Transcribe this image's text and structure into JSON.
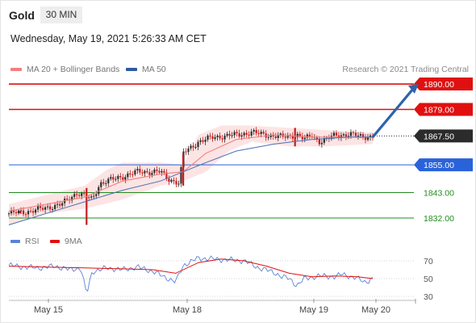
{
  "header": {
    "title": "Gold",
    "timeframe": "30 MIN",
    "datetime": "Wednesday, May 19, 2021 5:26:33 AM CET"
  },
  "legend": {
    "ma20": "MA 20 + Bollinger Bands",
    "ma50": "MA 50",
    "copyright": "Research © 2021 Trading Central"
  },
  "colors": {
    "resistance": "#e01010",
    "current": "#2b2b2b",
    "support_pivot": "#2a62d9",
    "support": "#1f8c1f",
    "ma20": "#f08080",
    "ma50": "#4a6fb5",
    "bollinger": "#fde4e4",
    "candle_up": "#2f2f2f",
    "candle_down": "#c41d1d",
    "rsi": "#5b82d6",
    "rsi_ma": "#e01010",
    "arrow": "#2f63a8"
  },
  "chart_data": [
    {
      "type": "candlestick",
      "title": "",
      "ylim": [
        1818,
        1897
      ],
      "x_ticks": [
        "May 15",
        "May 18",
        "May 19",
        "May 20"
      ],
      "levels": [
        {
          "label": "1890.00",
          "value": 1890.0,
          "kind": "resistance"
        },
        {
          "label": "1879.00",
          "value": 1879.0,
          "kind": "resistance"
        },
        {
          "label": "1867.50",
          "value": 1867.5,
          "kind": "current"
        },
        {
          "label": "1855.00",
          "value": 1855.0,
          "kind": "pivot"
        },
        {
          "label": "1843.00",
          "value": 1843.0,
          "kind": "support"
        },
        {
          "label": "1832.00",
          "value": 1832.0,
          "kind": "support"
        }
      ],
      "close_path": [
        [
          0,
          1834
        ],
        [
          6,
          1835
        ],
        [
          14,
          1838
        ],
        [
          18,
          1843
        ],
        [
          22,
          1840
        ],
        [
          24,
          1847
        ],
        [
          30,
          1850
        ],
        [
          34,
          1852
        ],
        [
          40,
          1852
        ],
        [
          42,
          1849
        ],
        [
          45,
          1847
        ],
        [
          46,
          1860
        ],
        [
          50,
          1865
        ],
        [
          54,
          1867
        ],
        [
          60,
          1868
        ],
        [
          64,
          1869
        ],
        [
          68,
          1868
        ],
        [
          72,
          1867
        ],
        [
          76,
          1868
        ],
        [
          78,
          1866
        ],
        [
          80,
          1868
        ],
        [
          82,
          1865
        ],
        [
          84,
          1866
        ],
        [
          86,
          1868
        ],
        [
          90,
          1868
        ],
        [
          96,
          1867
        ]
      ],
      "outlier_wicks": [
        {
          "x": 3,
          "low": 1834,
          "high": 1835
        },
        {
          "x": 20.5,
          "low": 1829,
          "high": 1845
        },
        {
          "x": 46,
          "low": 1846,
          "high": 1860
        },
        {
          "x": 75.5,
          "low": 1863,
          "high": 1871
        }
      ],
      "series": [
        {
          "name": "MA 20 + Bollinger Bands",
          "values": [
            [
              0,
              1835
            ],
            [
              10,
              1838
            ],
            [
              20,
              1841
            ],
            [
              30,
              1848
            ],
            [
              40,
              1851
            ],
            [
              46,
              1852
            ],
            [
              52,
              1860
            ],
            [
              60,
              1866
            ],
            [
              70,
              1868
            ],
            [
              80,
              1867
            ],
            [
              90,
              1867
            ],
            [
              96,
              1867
            ]
          ]
        },
        {
          "name": "MA 50",
          "values": [
            [
              0,
              1829
            ],
            [
              10,
              1834
            ],
            [
              20,
              1839
            ],
            [
              30,
              1844
            ],
            [
              40,
              1848
            ],
            [
              46,
              1852
            ],
            [
              52,
              1856
            ],
            [
              60,
              1861
            ],
            [
              70,
              1864
            ],
            [
              80,
              1866
            ],
            [
              90,
              1867
            ],
            [
              96,
              1867
            ]
          ]
        }
      ],
      "bollinger": {
        "upper": [
          [
            0,
            1838
          ],
          [
            10,
            1842
          ],
          [
            20,
            1846
          ],
          [
            26,
            1853
          ],
          [
            30,
            1856
          ],
          [
            40,
            1856
          ],
          [
            46,
            1855
          ],
          [
            50,
            1868
          ],
          [
            56,
            1872
          ],
          [
            64,
            1872
          ],
          [
            74,
            1871
          ],
          [
            84,
            1870
          ],
          [
            96,
            1869
          ]
        ],
        "lower": [
          [
            0,
            1829
          ],
          [
            10,
            1834
          ],
          [
            20,
            1836
          ],
          [
            30,
            1840
          ],
          [
            40,
            1846
          ],
          [
            46,
            1848
          ],
          [
            52,
            1852
          ],
          [
            58,
            1861
          ],
          [
            64,
            1865
          ],
          [
            74,
            1863
          ],
          [
            84,
            1863
          ],
          [
            96,
            1864
          ]
        ]
      },
      "forecast_arrow": {
        "from": [
          96,
          1867
        ],
        "to": [
          108,
          1890
        ]
      }
    },
    {
      "type": "line",
      "title": "",
      "ylim": [
        20,
        80
      ],
      "y_ticks": [
        "70",
        "50",
        "30"
      ],
      "series": [
        {
          "name": "RSI",
          "values": [
            [
              0,
              65
            ],
            [
              4,
              63
            ],
            [
              8,
              62
            ],
            [
              12,
              64
            ],
            [
              16,
              60
            ],
            [
              19,
              62
            ],
            [
              20.5,
              32
            ],
            [
              22,
              58
            ],
            [
              26,
              62
            ],
            [
              30,
              60
            ],
            [
              34,
              63
            ],
            [
              38,
              58
            ],
            [
              42,
              50
            ],
            [
              44,
              46
            ],
            [
              46,
              65
            ],
            [
              50,
              73
            ],
            [
              54,
              72
            ],
            [
              58,
              71
            ],
            [
              62,
              70
            ],
            [
              66,
              62
            ],
            [
              70,
              57
            ],
            [
              72,
              52
            ],
            [
              74,
              50
            ],
            [
              76,
              42
            ],
            [
              78,
              50
            ],
            [
              82,
              53
            ],
            [
              86,
              52
            ],
            [
              88,
              55
            ],
            [
              92,
              50
            ],
            [
              94,
              46
            ],
            [
              96,
              50
            ]
          ]
        },
        {
          "name": "9MA",
          "values": [
            [
              0,
              64
            ],
            [
              10,
              63
            ],
            [
              20,
              62
            ],
            [
              30,
              61
            ],
            [
              38,
              60
            ],
            [
              44,
              56
            ],
            [
              50,
              68
            ],
            [
              56,
              72
            ],
            [
              62,
              70
            ],
            [
              68,
              64
            ],
            [
              74,
              56
            ],
            [
              80,
              52
            ],
            [
              86,
              53
            ],
            [
              92,
              52
            ],
            [
              96,
              50
            ]
          ]
        }
      ]
    }
  ],
  "rsi_legend": {
    "rsi": "RSI",
    "ma": "9MA"
  }
}
